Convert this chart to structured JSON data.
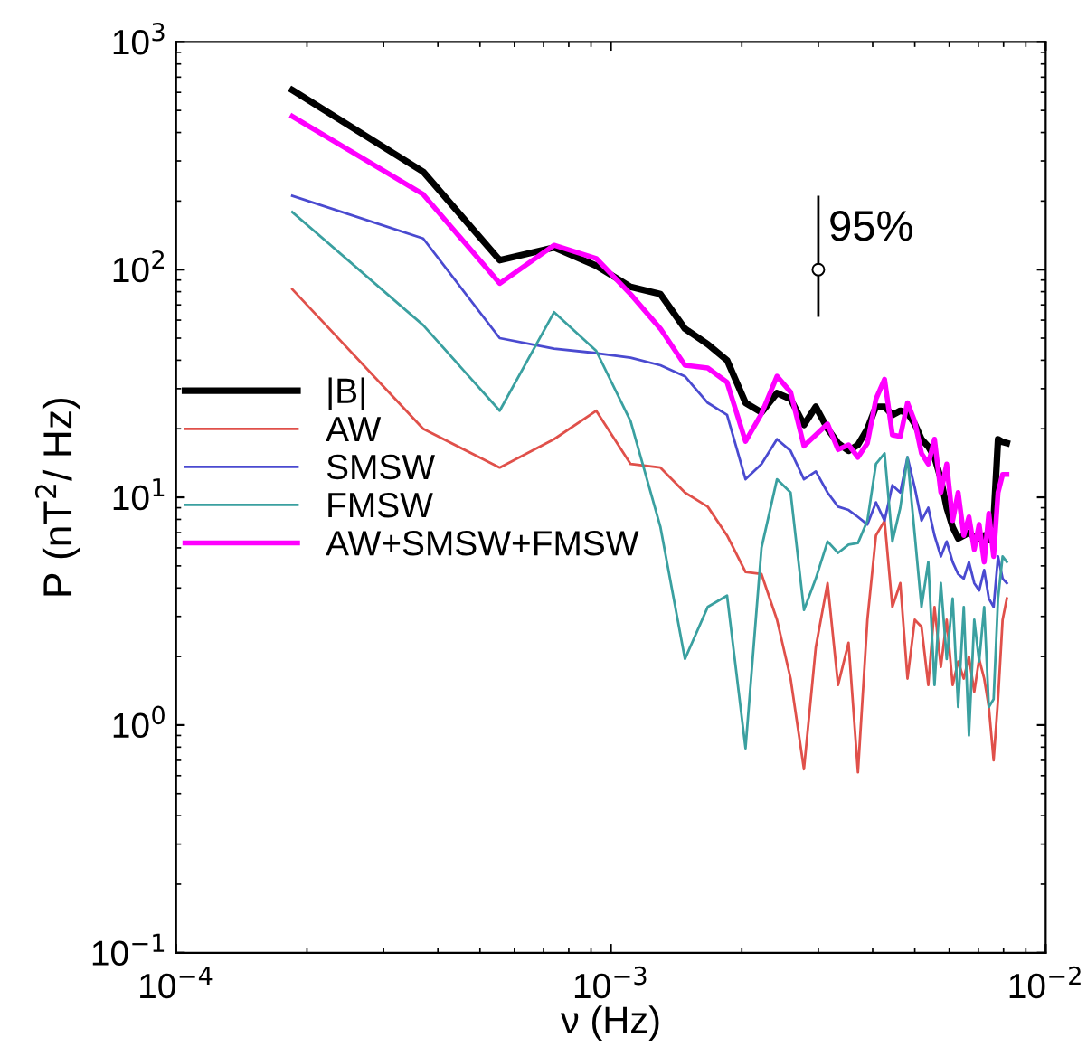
{
  "chart_data": {
    "type": "line",
    "xlabel": "ν (Hz)",
    "ylabel": "P (nT$^{2}$/ Hz)",
    "log": "xy",
    "grid": false,
    "legend": "center left",
    "line_style": "solid",
    "xlim": [
      0.0001,
      0.01
    ],
    "xticks": [
      {
        "value": 0.0001,
        "label": "10$^{−4}$"
      },
      {
        "value": 0.001,
        "label": "10$^{−3}$"
      },
      {
        "value": 0.01,
        "label": "10$^{−2}$"
      }
    ],
    "ylim": [
      0.1,
      1000
    ],
    "yticks": [
      {
        "value": 0.1,
        "label": "10$^{−1}$"
      },
      {
        "value": 1,
        "label": "10$^{0}$"
      },
      {
        "value": 10,
        "label": "10$^{1}$"
      },
      {
        "value": 100,
        "label": "10$^{2}$"
      },
      {
        "value": 1000,
        "label": "10$^{3}$"
      }
    ],
    "x": [
      0.000185,
      0.00037,
      0.000555,
      0.00074,
      0.000925,
      0.00111,
      0.0013,
      0.00148,
      0.00167,
      0.00185,
      0.00204,
      0.00222,
      0.00241,
      0.00259,
      0.00278,
      0.00296,
      0.00315,
      0.00333,
      0.00352,
      0.0037,
      0.00389,
      0.00407,
      0.00426,
      0.00444,
      0.00463,
      0.00481,
      0.005,
      0.00518,
      0.00537,
      0.00555,
      0.00574,
      0.00592,
      0.00611,
      0.00629,
      0.00648,
      0.00666,
      0.00685,
      0.00703,
      0.00722,
      0.0074,
      0.00759,
      0.00777,
      0.00796,
      0.00814
    ],
    "series": [
      {
        "name": "|B|",
        "color": "#000000",
        "values": [
          614,
          269,
          110,
          125,
          104,
          84,
          78,
          55,
          47,
          40,
          26,
          23.6,
          28.7,
          27,
          20.8,
          25,
          20,
          17.3,
          16,
          17,
          20,
          25,
          25,
          23,
          24,
          23.5,
          21,
          18,
          16.7,
          15,
          12,
          9,
          7.4,
          6.6,
          6.8,
          7,
          6.7,
          6.6,
          6.8,
          6.5,
          8,
          18,
          17.5,
          17.3
        ]
      },
      {
        "name": "AW",
        "color": "#e0504a",
        "values": [
          82,
          20,
          13.5,
          18,
          24,
          14,
          13.5,
          10.5,
          9.1,
          6.8,
          4.7,
          4.6,
          2.9,
          1.6,
          0.64,
          2.2,
          4.2,
          1.5,
          2.3,
          0.62,
          2.9,
          6.8,
          7.9,
          3.3,
          4.2,
          1.6,
          2.9,
          2.7,
          1.5,
          3.3,
          1.8,
          2.9,
          1.5,
          1.9,
          1.6,
          2,
          1.4,
          1.95,
          1.6,
          1.2,
          0.7,
          1.3,
          2.9,
          3.6
        ]
      },
      {
        "name": "SMSW",
        "color": "#4a4ad0",
        "values": [
          211,
          137,
          50,
          45,
          43,
          41,
          38,
          34,
          26,
          23,
          12,
          14,
          18,
          16,
          12,
          13,
          10.5,
          9.1,
          8.8,
          8.2,
          7.6,
          9.5,
          7.9,
          11.3,
          10.5,
          15,
          11,
          7.9,
          9,
          6.8,
          5.5,
          6.4,
          5.2,
          4.6,
          4.4,
          5.2,
          4.2,
          3.9,
          4.8,
          3.6,
          3.3,
          5.5,
          4.4,
          4.2
        ]
      },
      {
        "name": "FMSW",
        "color": "#3aa0a0",
        "values": [
          179,
          57,
          24,
          65,
          44,
          21.6,
          7.4,
          1.95,
          3.3,
          3.7,
          0.79,
          6,
          12,
          10.5,
          3.2,
          4.4,
          6.4,
          5.7,
          6.2,
          6.3,
          7.9,
          14,
          15.6,
          6.4,
          9,
          15,
          6.8,
          3.3,
          5.2,
          1.5,
          4.2,
          1.95,
          3.6,
          1.2,
          3.3,
          0.9,
          2.9,
          1.9,
          3.3,
          1.2,
          1.3,
          3.6,
          5.5,
          5.2
        ]
      },
      {
        "name": "AW+SMSW+FMSW",
        "color": "#ff00ff",
        "values": [
          471,
          214,
          87,
          128,
          112,
          78,
          55,
          38,
          37,
          32,
          17.6,
          23.3,
          34,
          29,
          16.8,
          18.8,
          21,
          16.2,
          17,
          15,
          17.3,
          27,
          33,
          18.8,
          18.5,
          26,
          21.5,
          15.6,
          14,
          18,
          10.5,
          14,
          7.9,
          10.5,
          6.8,
          8.2,
          5.9,
          7.6,
          5.2,
          8.5,
          5.5,
          10.5,
          12.6,
          12.6
        ]
      },
      {
        "type": "scatter",
        "marker": "circle",
        "color": "#000000",
        "x": [
          0.003
        ],
        "values": [
          100
        ],
        "errors": [
          [
            62,
            211
          ]
        ]
      }
    ],
    "annotations": [
      {
        "text": "95%",
        "x": 0.003,
        "y": 150
      }
    ]
  }
}
